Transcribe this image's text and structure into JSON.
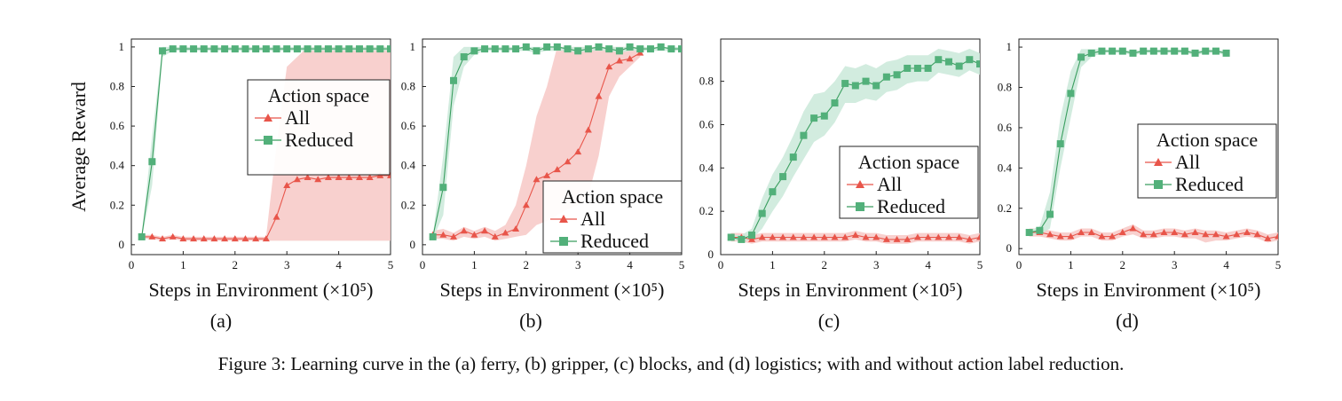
{
  "caption": "Figure 3: Learning curve in the (a) ferry, (b) gripper, (c) blocks, and (d) logistics; with and without action label reduction.",
  "colors": {
    "all": "#e8554a",
    "all_band": "#f7c8c5",
    "reduced": "#3a9e5f",
    "reduced_marker": "#52b07a",
    "reduced_band": "#cdeadb"
  },
  "chart_data": [
    {
      "type": "line",
      "panel_label": "(a)",
      "ylabel": "Average Reward",
      "xlabel": "Steps in Environment (×10⁵)",
      "xlim": [
        0,
        5
      ],
      "ylim": [
        -0.05,
        1.04
      ],
      "xticks": [
        0,
        1,
        2,
        3,
        4,
        5
      ],
      "yticks": [
        0,
        0.2,
        0.4,
        0.6,
        0.8,
        1
      ],
      "ytick_labels": [
        "0",
        "0.2",
        "0.4",
        "0.6",
        "0.8",
        "1"
      ],
      "legend": {
        "title": "Action space",
        "position": "upper-right"
      },
      "series": [
        {
          "name": "All",
          "color": "#e8554a",
          "marker": "triangle",
          "x": [
            0.2,
            0.4,
            0.6,
            0.8,
            1.0,
            1.2,
            1.4,
            1.6,
            1.8,
            2.0,
            2.2,
            2.4,
            2.6,
            2.8,
            3.0,
            3.2,
            3.4,
            3.6,
            3.8,
            4.0,
            4.2,
            4.4,
            4.6,
            4.8,
            5.0
          ],
          "y": [
            0.04,
            0.04,
            0.03,
            0.04,
            0.03,
            0.03,
            0.03,
            0.03,
            0.03,
            0.03,
            0.03,
            0.03,
            0.03,
            0.14,
            0.3,
            0.33,
            0.34,
            0.33,
            0.34,
            0.34,
            0.34,
            0.34,
            0.34,
            0.35,
            0.35
          ],
          "lower": [
            0.03,
            0.03,
            0.02,
            0.03,
            0.02,
            0.02,
            0.02,
            0.02,
            0.02,
            0.02,
            0.02,
            0.02,
            0.02,
            0.02,
            0.02,
            0.02,
            0.02,
            0.02,
            0.02,
            0.02,
            0.02,
            0.02,
            0.02,
            0.02,
            0.02
          ],
          "upper": [
            0.05,
            0.05,
            0.04,
            0.05,
            0.04,
            0.04,
            0.04,
            0.04,
            0.04,
            0.04,
            0.04,
            0.04,
            0.04,
            0.5,
            0.9,
            0.95,
            1.0,
            1.0,
            1.0,
            1.0,
            1.0,
            1.0,
            1.0,
            1.0,
            1.0
          ]
        },
        {
          "name": "Reduced",
          "color": "#3a9e5f",
          "marker": "square",
          "x": [
            0.2,
            0.4,
            0.6,
            0.8,
            1.0,
            1.2,
            1.4,
            1.6,
            1.8,
            2.0,
            2.2,
            2.4,
            2.6,
            2.8,
            3.0,
            3.2,
            3.4,
            3.6,
            3.8,
            4.0,
            4.2,
            4.4,
            4.6,
            4.8,
            5.0
          ],
          "y": [
            0.04,
            0.42,
            0.98,
            0.99,
            0.99,
            0.99,
            0.99,
            0.99,
            0.99,
            0.99,
            0.99,
            0.99,
            0.99,
            0.99,
            0.99,
            0.99,
            0.99,
            0.99,
            0.99,
            0.99,
            0.99,
            0.99,
            0.99,
            0.99,
            0.99
          ],
          "lower": [
            0.03,
            0.3,
            0.95,
            0.98,
            0.98,
            0.98,
            0.98,
            0.98,
            0.98,
            0.98,
            0.98,
            0.98,
            0.98,
            0.98,
            0.98,
            0.98,
            0.98,
            0.98,
            0.98,
            0.98,
            0.98,
            0.98,
            0.98,
            0.98,
            0.98
          ],
          "upper": [
            0.05,
            0.55,
            1.0,
            1.0,
            1.0,
            1.0,
            1.0,
            1.0,
            1.0,
            1.0,
            1.0,
            1.0,
            1.0,
            1.0,
            1.0,
            1.0,
            1.0,
            1.0,
            1.0,
            1.0,
            1.0,
            1.0,
            1.0,
            1.0,
            1.0
          ]
        }
      ]
    },
    {
      "type": "line",
      "panel_label": "(b)",
      "xlabel": "Steps in Environment (×10⁵)",
      "xlim": [
        0,
        5
      ],
      "ylim": [
        -0.05,
        1.04
      ],
      "xticks": [
        0,
        1,
        2,
        3,
        4,
        5
      ],
      "yticks": [
        0,
        0.2,
        0.4,
        0.6,
        0.8,
        1
      ],
      "ytick_labels": [
        "0",
        "0.2",
        "0.4",
        "0.6",
        "0.8",
        "1"
      ],
      "legend": {
        "title": "Action space",
        "position": "lower-right"
      },
      "series": [
        {
          "name": "All",
          "color": "#e8554a",
          "marker": "triangle",
          "x": [
            0.2,
            0.4,
            0.6,
            0.8,
            1.0,
            1.2,
            1.4,
            1.6,
            1.8,
            2.0,
            2.2,
            2.4,
            2.6,
            2.8,
            3.0,
            3.2,
            3.4,
            3.6,
            3.8,
            4.0,
            4.2
          ],
          "y": [
            0.05,
            0.05,
            0.04,
            0.07,
            0.05,
            0.07,
            0.04,
            0.06,
            0.08,
            0.2,
            0.33,
            0.35,
            0.38,
            0.42,
            0.47,
            0.58,
            0.75,
            0.9,
            0.93,
            0.94,
            0.97
          ],
          "lower": [
            0.03,
            0.03,
            0.02,
            0.04,
            0.03,
            0.04,
            0.02,
            0.03,
            0.04,
            0.05,
            0.1,
            0.12,
            0.15,
            0.18,
            0.2,
            0.25,
            0.45,
            0.75,
            0.85,
            0.9,
            0.95
          ],
          "upper": [
            0.07,
            0.08,
            0.06,
            0.09,
            0.07,
            0.09,
            0.07,
            0.1,
            0.2,
            0.4,
            0.65,
            0.8,
            1.0,
            1.0,
            1.0,
            1.0,
            1.0,
            1.0,
            1.0,
            1.0,
            1.0
          ]
        },
        {
          "name": "Reduced",
          "color": "#3a9e5f",
          "marker": "square",
          "x": [
            0.2,
            0.4,
            0.6,
            0.8,
            1.0,
            1.2,
            1.4,
            1.6,
            1.8,
            2.0,
            2.2,
            2.4,
            2.6,
            2.8,
            3.0,
            3.2,
            3.4,
            3.6,
            3.8,
            4.0,
            4.2,
            4.4,
            4.6,
            4.8,
            5.0
          ],
          "y": [
            0.04,
            0.29,
            0.83,
            0.95,
            0.98,
            0.99,
            0.99,
            0.99,
            0.99,
            1.0,
            0.98,
            1.0,
            1.0,
            0.99,
            0.98,
            0.99,
            1.0,
            0.99,
            0.98,
            1.0,
            0.99,
            0.99,
            1.0,
            0.99,
            0.99
          ],
          "lower": [
            0.03,
            0.15,
            0.7,
            0.9,
            0.96,
            0.98,
            0.98,
            0.98,
            0.98,
            0.98,
            0.97,
            0.98,
            0.98,
            0.98,
            0.97,
            0.98,
            0.98,
            0.98,
            0.97,
            0.98,
            0.98,
            0.98,
            0.98,
            0.98,
            0.98
          ],
          "upper": [
            0.05,
            0.45,
            0.95,
            1.0,
            1.0,
            1.0,
            1.0,
            1.0,
            1.0,
            1.0,
            1.0,
            1.0,
            1.0,
            1.0,
            1.0,
            1.0,
            1.0,
            1.0,
            1.0,
            1.0,
            1.0,
            1.0,
            1.0,
            1.0,
            1.0
          ]
        }
      ]
    },
    {
      "type": "line",
      "panel_label": "(c)",
      "xlabel": "Steps in Environment (×10⁵)",
      "xlim": [
        0,
        5
      ],
      "ylim": [
        0,
        0.995
      ],
      "xticks": [
        0,
        1,
        2,
        3,
        4,
        5
      ],
      "yticks": [
        0,
        0.2,
        0.4,
        0.6,
        0.8
      ],
      "ytick_labels": [
        "0",
        "0.2",
        "0.4",
        "0.6",
        "0.8"
      ],
      "legend": {
        "title": "Action space",
        "position": "lower-right"
      },
      "series": [
        {
          "name": "All",
          "color": "#e8554a",
          "marker": "triangle",
          "x": [
            0.2,
            0.4,
            0.6,
            0.8,
            1.0,
            1.2,
            1.4,
            1.6,
            1.8,
            2.0,
            2.2,
            2.4,
            2.6,
            2.8,
            3.0,
            3.2,
            3.4,
            3.6,
            3.8,
            4.0,
            4.2,
            4.4,
            4.6,
            4.8,
            5.0
          ],
          "y": [
            0.08,
            0.08,
            0.07,
            0.08,
            0.08,
            0.08,
            0.08,
            0.08,
            0.08,
            0.08,
            0.08,
            0.08,
            0.09,
            0.08,
            0.08,
            0.07,
            0.07,
            0.07,
            0.08,
            0.08,
            0.08,
            0.08,
            0.08,
            0.07,
            0.08
          ],
          "lower": [
            0.06,
            0.06,
            0.05,
            0.06,
            0.06,
            0.06,
            0.06,
            0.06,
            0.06,
            0.06,
            0.06,
            0.06,
            0.07,
            0.06,
            0.06,
            0.05,
            0.05,
            0.05,
            0.06,
            0.06,
            0.06,
            0.06,
            0.06,
            0.05,
            0.06
          ],
          "upper": [
            0.1,
            0.1,
            0.09,
            0.1,
            0.1,
            0.1,
            0.1,
            0.1,
            0.1,
            0.1,
            0.1,
            0.1,
            0.11,
            0.1,
            0.1,
            0.09,
            0.09,
            0.09,
            0.1,
            0.1,
            0.1,
            0.1,
            0.1,
            0.09,
            0.1
          ]
        },
        {
          "name": "Reduced",
          "color": "#3a9e5f",
          "marker": "square",
          "x": [
            0.2,
            0.4,
            0.6,
            0.8,
            1.0,
            1.2,
            1.4,
            1.6,
            1.8,
            2.0,
            2.2,
            2.4,
            2.6,
            2.8,
            3.0,
            3.2,
            3.4,
            3.6,
            3.8,
            4.0,
            4.2,
            4.4,
            4.6,
            4.8,
            5.0
          ],
          "y": [
            0.08,
            0.07,
            0.09,
            0.19,
            0.29,
            0.36,
            0.45,
            0.55,
            0.63,
            0.64,
            0.7,
            0.79,
            0.78,
            0.8,
            0.78,
            0.82,
            0.83,
            0.86,
            0.86,
            0.86,
            0.9,
            0.89,
            0.87,
            0.9,
            0.88
          ],
          "lower": [
            0.07,
            0.06,
            0.07,
            0.12,
            0.2,
            0.27,
            0.36,
            0.44,
            0.52,
            0.55,
            0.61,
            0.7,
            0.7,
            0.72,
            0.71,
            0.75,
            0.76,
            0.79,
            0.8,
            0.8,
            0.84,
            0.83,
            0.82,
            0.85,
            0.83
          ],
          "upper": [
            0.09,
            0.09,
            0.12,
            0.26,
            0.37,
            0.45,
            0.55,
            0.66,
            0.74,
            0.75,
            0.8,
            0.87,
            0.86,
            0.88,
            0.86,
            0.89,
            0.9,
            0.92,
            0.92,
            0.92,
            0.95,
            0.94,
            0.93,
            0.95,
            0.93
          ]
        }
      ]
    },
    {
      "type": "line",
      "panel_label": "(d)",
      "xlabel": "Steps in Environment (×10⁵)",
      "xlim": [
        0,
        5
      ],
      "ylim": [
        -0.03,
        1.04
      ],
      "xticks": [
        0,
        1,
        2,
        3,
        4,
        5
      ],
      "yticks": [
        0,
        0.2,
        0.4,
        0.6,
        0.8,
        1
      ],
      "ytick_labels": [
        "0",
        "0.2",
        "0.4",
        "0.6",
        "0.8",
        "1"
      ],
      "legend": {
        "title": "Action space",
        "position": "center-right"
      },
      "series": [
        {
          "name": "All",
          "color": "#e8554a",
          "marker": "triangle",
          "x": [
            0.2,
            0.4,
            0.6,
            0.8,
            1.0,
            1.2,
            1.4,
            1.6,
            1.8,
            2.0,
            2.2,
            2.4,
            2.6,
            2.8,
            3.0,
            3.2,
            3.4,
            3.6,
            3.8,
            4.0,
            4.2,
            4.4,
            4.6,
            4.8,
            5.0
          ],
          "y": [
            0.08,
            0.08,
            0.07,
            0.06,
            0.06,
            0.08,
            0.08,
            0.06,
            0.06,
            0.08,
            0.1,
            0.07,
            0.07,
            0.08,
            0.08,
            0.07,
            0.08,
            0.07,
            0.07,
            0.06,
            0.07,
            0.08,
            0.07,
            0.05,
            0.06
          ],
          "lower": [
            0.06,
            0.06,
            0.05,
            0.04,
            0.04,
            0.06,
            0.06,
            0.04,
            0.04,
            0.06,
            0.07,
            0.05,
            0.05,
            0.06,
            0.06,
            0.05,
            0.05,
            0.03,
            0.04,
            0.04,
            0.05,
            0.06,
            0.05,
            0.03,
            0.04
          ],
          "upper": [
            0.1,
            0.1,
            0.09,
            0.08,
            0.08,
            0.1,
            0.1,
            0.08,
            0.08,
            0.1,
            0.12,
            0.09,
            0.09,
            0.1,
            0.1,
            0.09,
            0.1,
            0.09,
            0.09,
            0.08,
            0.09,
            0.1,
            0.09,
            0.07,
            0.08
          ]
        },
        {
          "name": "Reduced",
          "color": "#3a9e5f",
          "marker": "square",
          "x": [
            0.2,
            0.4,
            0.6,
            0.8,
            1.0,
            1.2,
            1.4,
            1.6,
            1.8,
            2.0,
            2.2,
            2.4,
            2.6,
            2.8,
            3.0,
            3.2,
            3.4,
            3.6,
            3.8,
            4.0
          ],
          "y": [
            0.08,
            0.09,
            0.17,
            0.52,
            0.77,
            0.95,
            0.97,
            0.98,
            0.98,
            0.98,
            0.97,
            0.98,
            0.98,
            0.98,
            0.98,
            0.98,
            0.97,
            0.98,
            0.98,
            0.97
          ],
          "lower": [
            0.07,
            0.07,
            0.1,
            0.4,
            0.65,
            0.9,
            0.95,
            0.97,
            0.97,
            0.97,
            0.96,
            0.97,
            0.97,
            0.97,
            0.97,
            0.97,
            0.96,
            0.97,
            0.97,
            0.96
          ],
          "upper": [
            0.09,
            0.11,
            0.28,
            0.65,
            0.88,
            0.99,
            0.99,
            0.99,
            0.99,
            0.99,
            0.98,
            0.99,
            0.99,
            0.99,
            0.99,
            0.99,
            0.98,
            0.99,
            0.99,
            0.98
          ]
        }
      ]
    }
  ]
}
